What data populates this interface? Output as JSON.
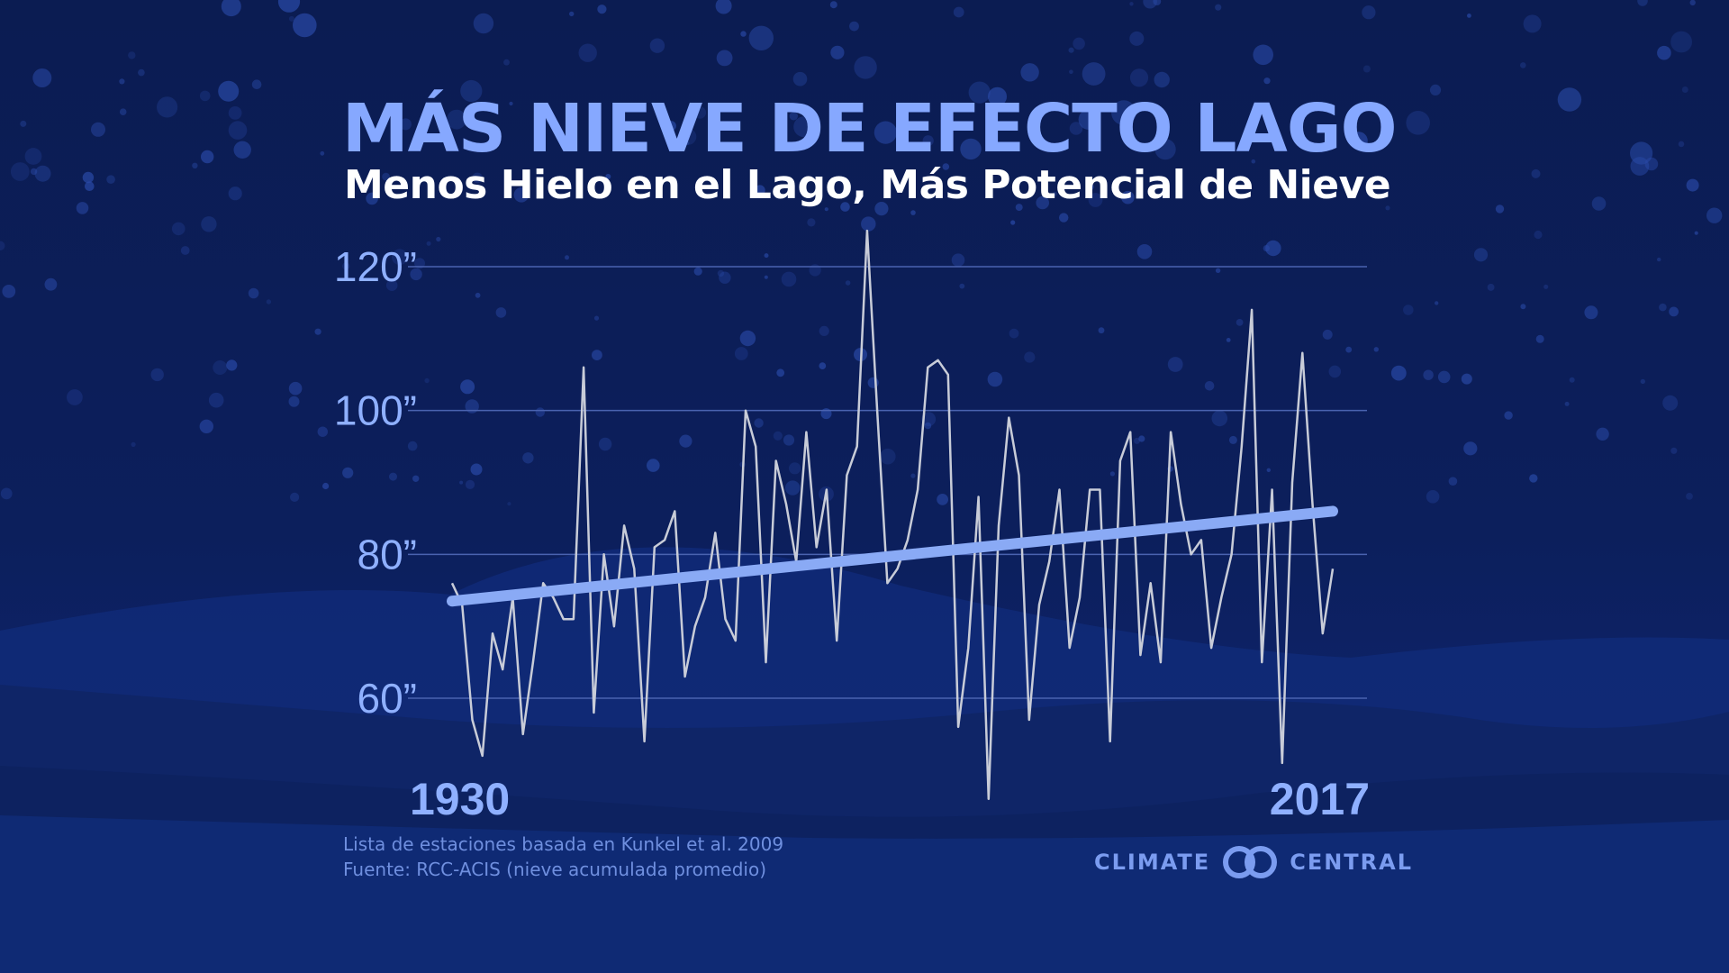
{
  "header": {
    "title": "MÁS NIEVE DE EFECTO LAGO",
    "subtitle": "Menos Hielo en el Lago, Más Potencial de Nieve"
  },
  "footer": {
    "source_line1": "Lista de estaciones basada en Kunkel et al. 2009",
    "source_line2": "Fuente: RCC-ACIS (nieve acumulada promedio)"
  },
  "logo": {
    "left_text": "CLIMATE",
    "right_text": "CENTRAL",
    "icon": "climate-central-rings-icon"
  },
  "colors": {
    "background": "#0b1c52",
    "title": "#86a8ff",
    "series": "#c8ccd8",
    "trend": "#8aaaf5",
    "grid": "#4a63b0",
    "axis_text": "#8fb0ff"
  },
  "chart_data": {
    "type": "line",
    "title": "MÁS NIEVE DE EFECTO LAGO",
    "subtitle": "Menos Hielo en el Lago, Más Potencial de Nieve",
    "x_range": [
      1930,
      2017
    ],
    "x_tick_labels": [
      "1930",
      "2017"
    ],
    "ylim": [
      60,
      120
    ],
    "y_ticks": [
      60,
      80,
      100,
      120
    ],
    "y_tick_labels": [
      "60”",
      "80”",
      "100”",
      "120”"
    ],
    "grid": "horizontal",
    "series": [
      {
        "x": [
          1930,
          1931,
          1932,
          1933,
          1934,
          1935,
          1936,
          1937,
          1938,
          1939,
          1940,
          1941,
          1942,
          1943,
          1944,
          1945,
          1946,
          1947,
          1948,
          1949,
          1950,
          1951,
          1952,
          1953,
          1954,
          1955,
          1956,
          1957,
          1958,
          1959,
          1960,
          1961,
          1962,
          1963,
          1964,
          1965,
          1966,
          1967,
          1968,
          1969,
          1970,
          1971,
          1972,
          1973,
          1974,
          1975,
          1976,
          1977,
          1978,
          1979,
          1980,
          1981,
          1982,
          1983,
          1984,
          1985,
          1986,
          1987,
          1988,
          1989,
          1990,
          1991,
          1992,
          1993,
          1994,
          1995,
          1996,
          1997,
          1998,
          1999,
          2000,
          2001,
          2002,
          2003,
          2004,
          2005,
          2006,
          2007,
          2008,
          2009,
          2010,
          2011,
          2012,
          2013,
          2014,
          2015,
          2016,
          2017
        ],
        "values": [
          76,
          73,
          57,
          52,
          69,
          64,
          74,
          55,
          65,
          76,
          74,
          71,
          71,
          106,
          58,
          80,
          70,
          84,
          78,
          54,
          81,
          82,
          86,
          63,
          70,
          74,
          83,
          71,
          68,
          100,
          95,
          65,
          93,
          87,
          79,
          97,
          81,
          89,
          68,
          91,
          95,
          125,
          100,
          76,
          78,
          82,
          89,
          106,
          107,
          105,
          56,
          67,
          88,
          46,
          84,
          99,
          91,
          57,
          73,
          79,
          89,
          67,
          74,
          89,
          89,
          54,
          93,
          97,
          66,
          76,
          65,
          97,
          87,
          80,
          82,
          67,
          74,
          80,
          95,
          114,
          65,
          89,
          51,
          90,
          108,
          87,
          69,
          78
        ]
      },
      {
        "name": "trend",
        "x": [
          1930,
          2017
        ],
        "values": [
          73.5,
          86.0
        ]
      }
    ]
  }
}
